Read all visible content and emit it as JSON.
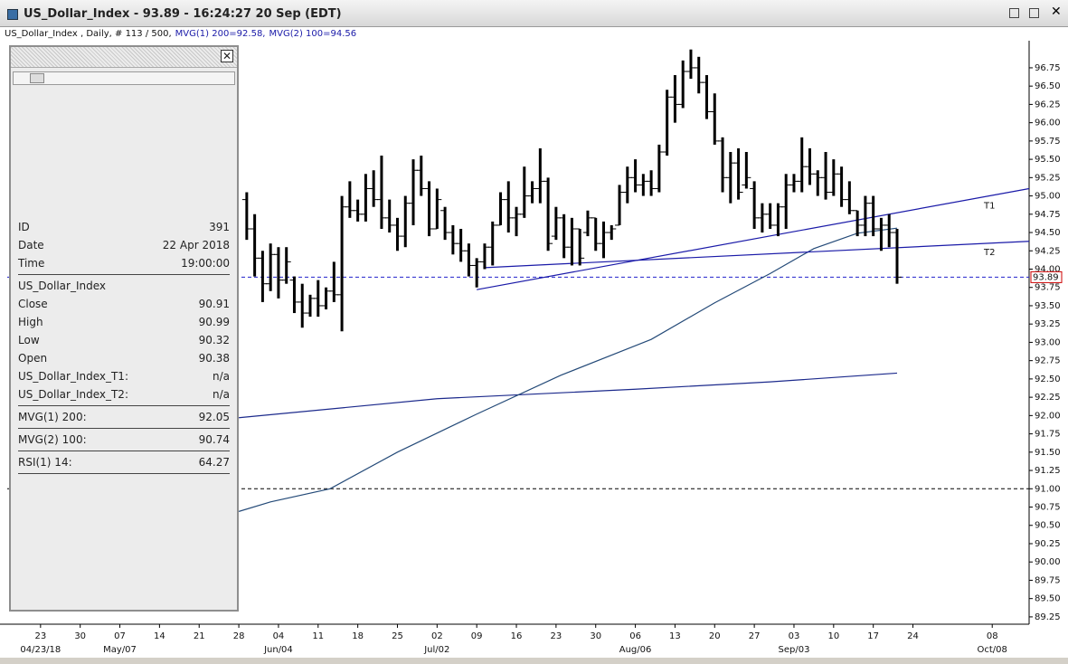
{
  "window": {
    "title": "US_Dollar_Index - 93.89 - 16:24:27  20 Sep (EDT)"
  },
  "subtitle": {
    "info": "US_Dollar_Index , Daily, # 113 / 500,",
    "mvg1": "MVG(1) 200=92.58,",
    "mvg2": "MVG(2) 100=94.56"
  },
  "panel": {
    "rows": [
      {
        "label": "ID",
        "value": 391
      },
      {
        "label": "Date",
        "value": "22 Apr 2018"
      },
      {
        "label": "Time",
        "value": "19:00:00"
      },
      {
        "label": "US_Dollar_Index"
      },
      {
        "label": "Close",
        "value": 90.91
      },
      {
        "label": "High",
        "value": 90.99
      },
      {
        "label": "Low",
        "value": 90.32
      },
      {
        "label": "Open",
        "value": 90.38
      },
      {
        "label": "US_Dollar_Index_T1:",
        "value": "n/a"
      },
      {
        "label": "US_Dollar_Index_T2:",
        "value": "n/a"
      },
      {
        "label": "MVG(1) 200:",
        "value": 92.05
      },
      {
        "label": "MVG(2) 100:",
        "value": 90.74
      },
      {
        "label": "RSI(1) 14:",
        "value": 64.27
      }
    ]
  },
  "chart_data": {
    "type": "ohlc",
    "xlim": [
      -4.2,
      124.65
    ],
    "ylim": [
      89.15,
      97.12
    ],
    "yticks": [
      96.75,
      {
        "value": 96.5,
        "label": "96.50"
      },
      96.25,
      {
        "value": 96,
        "label": "96.00"
      },
      95.75,
      {
        "value": 95.5,
        "label": "95.50"
      },
      95.25,
      {
        "value": 95,
        "label": "95.00"
      },
      94.75,
      {
        "value": 94.5,
        "label": "94.50"
      },
      94.25,
      {
        "value": 94,
        "label": "94.00"
      },
      93.75,
      {
        "value": 93.5,
        "label": "93.50"
      },
      93.25,
      {
        "value": 93,
        "label": "93.00"
      },
      92.75,
      {
        "value": 92.5,
        "label": "92.50"
      },
      92.25,
      {
        "value": 92,
        "label": "92.00"
      },
      91.75,
      {
        "value": 91.5,
        "label": "91.50"
      },
      91.25,
      {
        "value": 91,
        "label": "91.00"
      },
      90.75,
      {
        "value": 90.5,
        "label": "90.50"
      },
      90.25,
      {
        "value": 90,
        "label": "90.00"
      },
      89.75,
      {
        "value": 89.5,
        "label": "89.50"
      },
      89.25
    ],
    "xticks": [
      {
        "value": 0,
        "label": "23"
      },
      {
        "value": 5,
        "label": "30"
      },
      {
        "value": 10,
        "label": "07"
      },
      {
        "value": 15,
        "label": "14"
      },
      {
        "value": 20,
        "label": "21"
      },
      {
        "value": 25,
        "label": "28"
      },
      {
        "value": 30,
        "label": "04"
      },
      {
        "value": 35,
        "label": "11"
      },
      {
        "value": 40,
        "label": "18"
      },
      {
        "value": 45,
        "label": "25"
      },
      {
        "value": 50,
        "label": "02"
      },
      {
        "value": 55,
        "label": "09"
      },
      {
        "value": 60,
        "label": "16"
      },
      {
        "value": 65,
        "label": "23"
      },
      {
        "value": 70,
        "label": "30"
      },
      {
        "value": 75,
        "label": "06"
      },
      {
        "value": 80,
        "label": "13"
      },
      {
        "value": 85,
        "label": "20"
      },
      {
        "value": 90,
        "label": "27"
      },
      {
        "value": 95,
        "label": "03"
      },
      {
        "value": 100,
        "label": "10"
      },
      {
        "value": 105,
        "label": "17"
      },
      {
        "value": 110,
        "label": "24"
      },
      {
        "value": 120,
        "label": "08"
      }
    ],
    "xticks_major": [
      {
        "value": 0,
        "label": "04/23/18"
      },
      {
        "value": 10,
        "label": "May/07"
      },
      {
        "value": 30,
        "label": "Jun/04"
      },
      {
        "value": 50,
        "label": "Jul/02"
      },
      {
        "value": 75,
        "label": "Aug/06"
      },
      {
        "value": 95,
        "label": "Sep/03"
      },
      {
        "value": 120,
        "label": "Oct/08"
      }
    ],
    "color": "#000000",
    "x": [
      26,
      27,
      28,
      29,
      30,
      31,
      32,
      33,
      34,
      35,
      36,
      37,
      38,
      39,
      40,
      41,
      42,
      43,
      44,
      45,
      46,
      47,
      48,
      49,
      50,
      51,
      52,
      53,
      54,
      55,
      56,
      57,
      58,
      59,
      60,
      61,
      62,
      63,
      64,
      65,
      66,
      67,
      68,
      69,
      70,
      71,
      72,
      73,
      74,
      75,
      76,
      77,
      78,
      79,
      80,
      81,
      82,
      83,
      84,
      85,
      86,
      87,
      88,
      89,
      90,
      91,
      92,
      93,
      94,
      95,
      96,
      97,
      98,
      99,
      100,
      101,
      102,
      103,
      104,
      105,
      106,
      107,
      108
    ],
    "bars": [
      [
        94.95,
        95.05,
        94.4,
        94.55
      ],
      [
        94.55,
        94.75,
        93.9,
        94.15
      ],
      [
        94.15,
        94.25,
        93.55,
        93.8
      ],
      [
        93.8,
        94.35,
        93.7,
        94.2
      ],
      [
        94.2,
        94.3,
        93.6,
        93.85
      ],
      [
        93.85,
        94.3,
        93.8,
        94.1
      ],
      [
        93.85,
        93.9,
        93.4,
        93.55
      ],
      [
        93.55,
        93.8,
        93.2,
        93.4
      ],
      [
        93.4,
        93.65,
        93.35,
        93.6
      ],
      [
        93.6,
        93.85,
        93.35,
        93.5
      ],
      [
        93.5,
        93.75,
        93.45,
        93.7
      ],
      [
        93.7,
        94.1,
        93.55,
        93.65
      ],
      [
        93.65,
        95.0,
        93.15,
        94.85
      ],
      [
        94.85,
        95.2,
        94.7,
        94.8
      ],
      [
        94.8,
        94.95,
        94.65,
        94.75
      ],
      [
        94.75,
        95.3,
        94.65,
        95.1
      ],
      [
        95.1,
        95.35,
        94.85,
        94.95
      ],
      [
        94.95,
        95.55,
        94.55,
        94.7
      ],
      [
        94.7,
        94.95,
        94.5,
        94.6
      ],
      [
        94.6,
        94.7,
        94.25,
        94.45
      ],
      [
        94.45,
        95.0,
        94.3,
        94.9
      ],
      [
        94.9,
        95.5,
        94.6,
        95.35
      ],
      [
        95.35,
        95.55,
        95.0,
        95.1
      ],
      [
        95.1,
        95.2,
        94.45,
        94.55
      ],
      [
        94.55,
        95.1,
        94.55,
        94.95
      ],
      [
        94.8,
        94.85,
        94.4,
        94.5
      ],
      [
        94.5,
        94.6,
        94.2,
        94.35
      ],
      [
        94.35,
        94.55,
        94.1,
        94.25
      ],
      [
        94.25,
        94.35,
        93.9,
        94.05
      ],
      [
        94.05,
        94.15,
        93.75,
        94.1
      ],
      [
        94.1,
        94.35,
        94.0,
        94.3
      ],
      [
        94.3,
        94.65,
        94.05,
        94.6
      ],
      [
        94.6,
        95.05,
        94.6,
        94.95
      ],
      [
        94.95,
        95.2,
        94.5,
        94.7
      ],
      [
        94.7,
        94.85,
        94.45,
        94.75
      ],
      [
        94.75,
        95.4,
        94.7,
        95.0
      ],
      [
        95.0,
        95.2,
        94.9,
        95.1
      ],
      [
        95.1,
        95.65,
        94.9,
        95.2
      ],
      [
        95.2,
        95.25,
        94.25,
        94.35
      ],
      [
        94.45,
        94.85,
        94.4,
        94.7
      ],
      [
        94.7,
        94.75,
        94.15,
        94.3
      ],
      [
        94.3,
        94.7,
        94.05,
        94.55
      ],
      [
        94.55,
        94.55,
        94.05,
        94.15
      ],
      [
        94.5,
        94.8,
        94.45,
        94.7
      ],
      [
        94.7,
        94.7,
        94.25,
        94.35
      ],
      [
        94.35,
        94.65,
        94.15,
        94.5
      ],
      [
        94.5,
        94.6,
        94.4,
        94.55
      ],
      [
        94.6,
        95.15,
        94.6,
        95.05
      ],
      [
        95.05,
        95.4,
        94.9,
        95.25
      ],
      [
        95.25,
        95.5,
        95.05,
        95.15
      ],
      [
        95.15,
        95.3,
        95.0,
        95.2
      ],
      [
        95.2,
        95.35,
        95.0,
        95.1
      ],
      [
        95.1,
        95.7,
        95.05,
        95.6
      ],
      [
        95.6,
        96.45,
        95.55,
        96.35
      ],
      [
        96.35,
        96.65,
        96.0,
        96.25
      ],
      [
        96.25,
        96.85,
        96.2,
        96.7
      ],
      [
        96.7,
        97.0,
        96.6,
        96.75
      ],
      [
        96.75,
        96.9,
        96.4,
        96.55
      ],
      [
        96.55,
        96.65,
        96.05,
        96.15
      ],
      [
        96.15,
        96.4,
        95.7,
        95.75
      ],
      [
        95.75,
        95.8,
        95.05,
        95.25
      ],
      [
        95.25,
        95.6,
        94.9,
        95.45
      ],
      [
        95.45,
        95.65,
        94.95,
        95.05
      ],
      [
        95.15,
        95.6,
        95.1,
        95.25
      ],
      [
        95.1,
        95.2,
        94.55,
        94.7
      ],
      [
        94.7,
        94.9,
        94.5,
        94.75
      ],
      [
        94.75,
        94.9,
        94.55,
        94.6
      ],
      [
        94.6,
        94.9,
        94.45,
        94.85
      ],
      [
        94.85,
        95.3,
        94.55,
        95.15
      ],
      [
        95.15,
        95.3,
        95.05,
        95.2
      ],
      [
        95.2,
        95.8,
        95.05,
        95.4
      ],
      [
        95.4,
        95.65,
        95.15,
        95.3
      ],
      [
        95.3,
        95.35,
        95.0,
        95.25
      ],
      [
        95.25,
        95.6,
        94.95,
        95.05
      ],
      [
        95.05,
        95.5,
        95.0,
        95.3
      ],
      [
        95.3,
        95.4,
        94.85,
        94.95
      ],
      [
        94.95,
        95.2,
        94.75,
        94.8
      ],
      [
        94.8,
        94.8,
        94.45,
        94.6
      ],
      [
        94.6,
        95.0,
        94.45,
        94.9
      ],
      [
        94.9,
        95.0,
        94.45,
        94.55
      ],
      [
        94.55,
        94.7,
        94.25,
        94.6
      ],
      [
        94.6,
        94.75,
        94.3,
        94.5
      ],
      [
        94.5,
        94.55,
        93.8,
        93.89
      ]
    ],
    "price_line": {
      "value": 93.89,
      "color": "#2222cc",
      "label_color": "#cc0000"
    },
    "level_line": {
      "value": 91,
      "color": "#000000"
    },
    "trendlines": [
      {
        "name": "T1",
        "color": "#1a1aa8",
        "x": [
          55,
          124.65
        ],
        "y": [
          93.72,
          95.1
        ]
      },
      {
        "name": "T2",
        "color": "#1a1aa8",
        "x": [
          56,
          124.65
        ],
        "y": [
          94.02,
          94.38
        ]
      }
    ],
    "moving_averages": [
      {
        "color": "#1c2a8c",
        "x": [
          25,
          50,
          75,
          92,
          108
        ],
        "values": [
          91.97,
          92.23,
          92.36,
          92.46,
          92.58
        ]
      },
      {
        "color": "#244a78",
        "x": [
          25,
          29,
          36.5,
          45,
          55,
          65.6,
          77,
          85,
          92,
          97.5,
          103,
          108
        ],
        "values": [
          90.69,
          90.82,
          91.0,
          91.5,
          92.02,
          92.55,
          93.04,
          93.54,
          93.94,
          94.28,
          94.49,
          94.56
        ]
      }
    ]
  }
}
